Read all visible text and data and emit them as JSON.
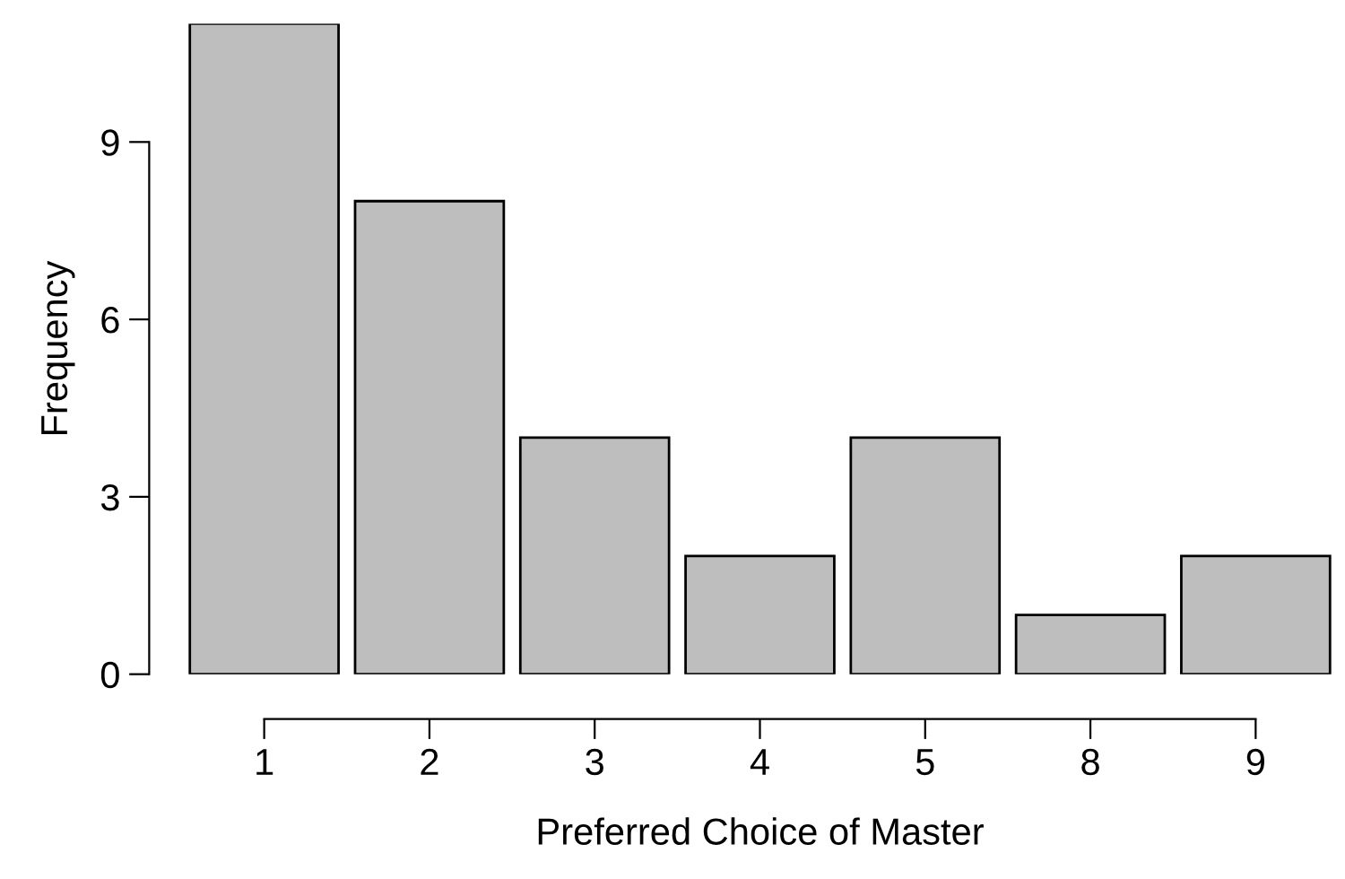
{
  "chart_data": {
    "type": "bar",
    "xlabel": "Preferred Choice of Master",
    "ylabel": "Frequency",
    "categories": [
      "1",
      "2",
      "3",
      "4",
      "5",
      "8",
      "9"
    ],
    "values": [
      11,
      8,
      4,
      2,
      4,
      1,
      2
    ],
    "color": "#bebebe",
    "ylim": [
      0,
      11
    ],
    "yticks": [
      0,
      3,
      6,
      9
    ],
    "grid": false
  }
}
